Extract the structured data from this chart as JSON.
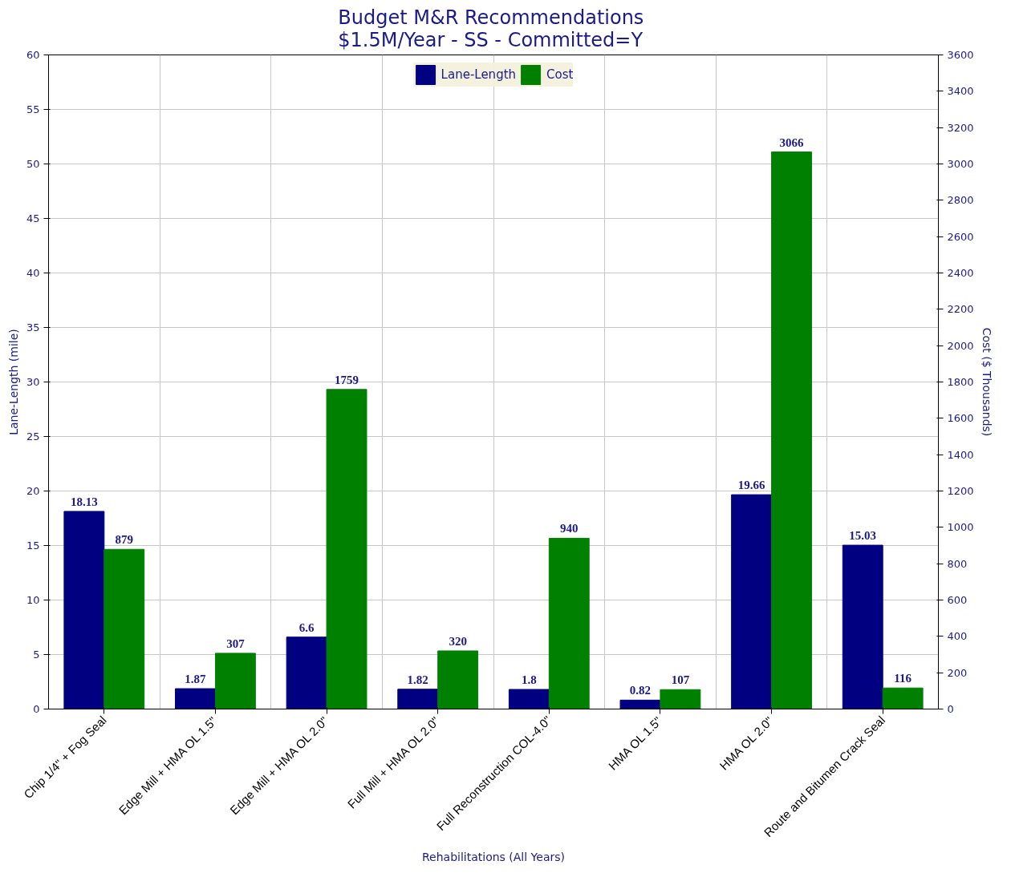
{
  "chart_data": {
    "type": "bar",
    "title": "Budget M&R Recommendations\n$1.5M/Year - SS -  Committed=Y",
    "xlabel": "Rehabilitations (All Years)",
    "ylabel": "Lane-Length (mile)",
    "y2label": "Cost ($ Thousands)",
    "categories": [
      "Chip 1/4\" + Fog Seal",
      "Edge Mill + HMA OL 1.5\"",
      "Edge Mill + HMA OL 2.0\"",
      "Full Mill + HMA OL 2.0\"",
      "Full Reconstruction COL-4.0\"",
      "HMA OL 1.5\"",
      "HMA OL 2.0\"",
      "Route and Bitumen Crack Seal"
    ],
    "series": [
      {
        "name": "Lane-Length",
        "color": "#000080",
        "values": [
          18.13,
          1.87,
          6.6,
          1.82,
          1.8,
          0.82,
          19.66,
          15.03
        ]
      },
      {
        "name": "Cost",
        "color": "#008000",
        "axis": "y2",
        "values": [
          879,
          307,
          1759,
          320,
          940,
          107,
          3066,
          116
        ]
      }
    ],
    "ylim": [
      0,
      60
    ],
    "yticks": [
      0,
      5,
      10,
      15,
      20,
      25,
      30,
      35,
      40,
      45,
      50,
      55,
      60
    ],
    "y2lim": [
      0,
      3600
    ],
    "y2ticks": [
      0,
      200,
      400,
      600,
      800,
      1000,
      1200,
      1400,
      1600,
      1800,
      2000,
      2200,
      2400,
      2600,
      2800,
      3000,
      3200,
      3400,
      3600
    ],
    "data_labels": true,
    "grid": true,
    "legend": "top"
  }
}
